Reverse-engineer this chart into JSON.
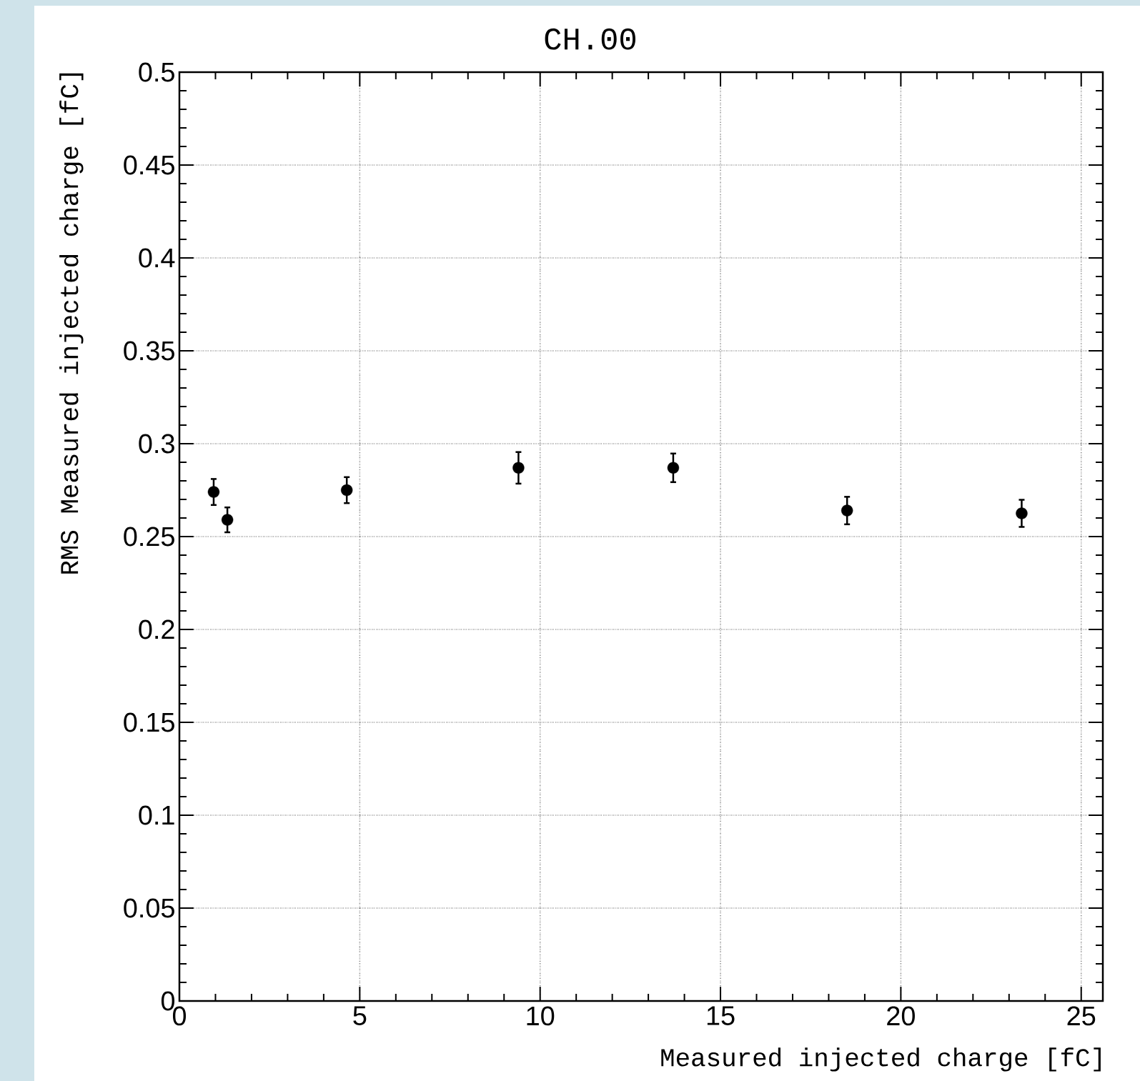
{
  "chart_data": {
    "type": "scatter",
    "title": "CH.00",
    "xlabel": "Measured injected charge [fC]",
    "ylabel": "RMS Measured injected charge [fC]",
    "x": [
      0.95,
      1.33,
      4.64,
      9.4,
      13.69,
      18.51,
      23.35
    ],
    "values": [
      0.274,
      0.259,
      0.275,
      0.287,
      0.287,
      0.264,
      0.2625
    ],
    "errors": [
      0.007,
      0.0067,
      0.007,
      0.0085,
      0.0077,
      0.0074,
      0.0073
    ],
    "color": "#000000",
    "marker": "circle",
    "xlim": [
      0,
      25.6
    ],
    "ylim": [
      0,
      0.5
    ],
    "xticks": [
      0,
      5,
      10,
      15,
      20,
      25
    ],
    "yticks": [
      0,
      0.05,
      0.1,
      0.15,
      0.2,
      0.25,
      0.3,
      0.35,
      0.4,
      0.45,
      0.5
    ],
    "grid": true
  }
}
